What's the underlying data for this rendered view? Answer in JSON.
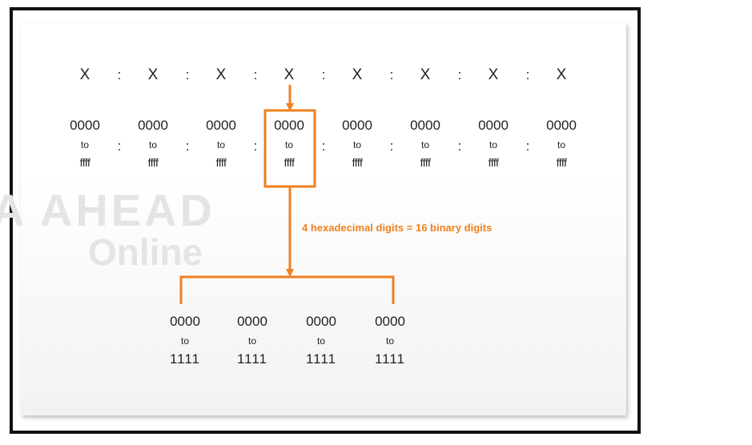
{
  "colors": {
    "accent": "#f07f1e",
    "text": "#222222",
    "frame": "#111111"
  },
  "address_fields": [
    "X",
    "X",
    "X",
    "X",
    "X",
    "X",
    "X",
    "X"
  ],
  "separator": ":",
  "hextet_range": {
    "from": "0000",
    "to_word": "to",
    "until": "ffff"
  },
  "annotation": "4 hexadecimal digits = 16 binary digits",
  "binary_range": {
    "from": "0000",
    "to_word": "to",
    "until": "1111"
  },
  "binary_groups": 4,
  "watermark": {
    "line1": "A AHEAD",
    "line2": "Online"
  }
}
